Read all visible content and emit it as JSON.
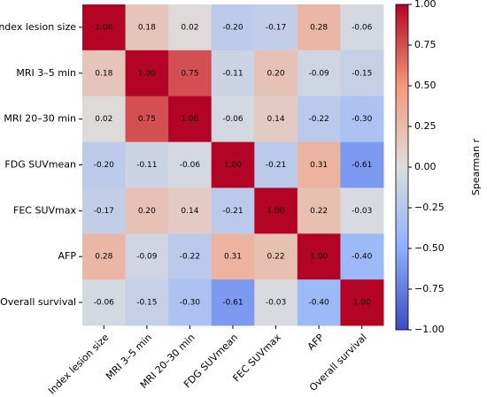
{
  "chart_data": {
    "type": "heatmap",
    "categories": [
      "Index lesion size",
      "MRI 3–5 min",
      "MRI 20–30 min",
      "FDG SUVmean",
      "FEC SUVmax",
      "AFP",
      "Overall survival"
    ],
    "values": [
      [
        1.0,
        0.18,
        0.02,
        -0.2,
        -0.17,
        0.28,
        -0.06
      ],
      [
        0.18,
        1.0,
        0.75,
        -0.11,
        0.2,
        -0.09,
        -0.15
      ],
      [
        0.02,
        0.75,
        1.0,
        -0.06,
        0.14,
        -0.22,
        -0.3
      ],
      [
        -0.2,
        -0.11,
        -0.06,
        1.0,
        -0.21,
        0.31,
        -0.61
      ],
      [
        -0.17,
        0.2,
        0.14,
        -0.21,
        1.0,
        0.22,
        -0.03
      ],
      [
        0.28,
        -0.09,
        -0.22,
        0.31,
        0.22,
        1.0,
        -0.4
      ],
      [
        -0.06,
        -0.15,
        -0.3,
        -0.61,
        -0.03,
        -0.4,
        1.0
      ]
    ],
    "value_labels": [
      [
        "1.00",
        "0.18",
        "0.02",
        "-0.20",
        "-0.17",
        "0.28",
        "-0.06"
      ],
      [
        "0.18",
        "1.00",
        "0.75",
        "-0.11",
        "0.20",
        "-0.09",
        "-0.15"
      ],
      [
        "0.02",
        "0.75",
        "1.00",
        "-0.06",
        "0.14",
        "-0.22",
        "-0.30"
      ],
      [
        "-0.20",
        "-0.11",
        "-0.06",
        "1.00",
        "-0.21",
        "0.31",
        "-0.61"
      ],
      [
        "-0.17",
        "0.20",
        "0.14",
        "-0.21",
        "1.00",
        "0.22",
        "-0.03"
      ],
      [
        "0.28",
        "-0.09",
        "-0.22",
        "0.31",
        "0.22",
        "1.00",
        "-0.40"
      ],
      [
        "-0.06",
        "-0.15",
        "-0.30",
        "-0.61",
        "-0.03",
        "-0.40",
        "1.00"
      ]
    ],
    "colorscale": [
      [
        -1,
        "#3b4cc0"
      ],
      [
        -0.5,
        "#8db0fe"
      ],
      [
        0,
        "#dddddd"
      ],
      [
        0.5,
        "#f49a7b"
      ],
      [
        1,
        "#b40426"
      ]
    ],
    "clim": [
      -1,
      1
    ],
    "cticks": [
      {
        "value": 1,
        "label": "1.00"
      },
      {
        "value": 0.75,
        "label": "0.75"
      },
      {
        "value": 0.5,
        "label": "0.50"
      },
      {
        "value": 0.25,
        "label": "0.25"
      },
      {
        "value": 0,
        "label": "0.00"
      },
      {
        "value": -0.25,
        "label": "−0.25"
      },
      {
        "value": -0.5,
        "label": "−0.50"
      },
      {
        "value": -0.75,
        "label": "−0.75"
      },
      {
        "value": -1,
        "label": "−1.00"
      }
    ],
    "colorbar_label": "Spearman r"
  }
}
